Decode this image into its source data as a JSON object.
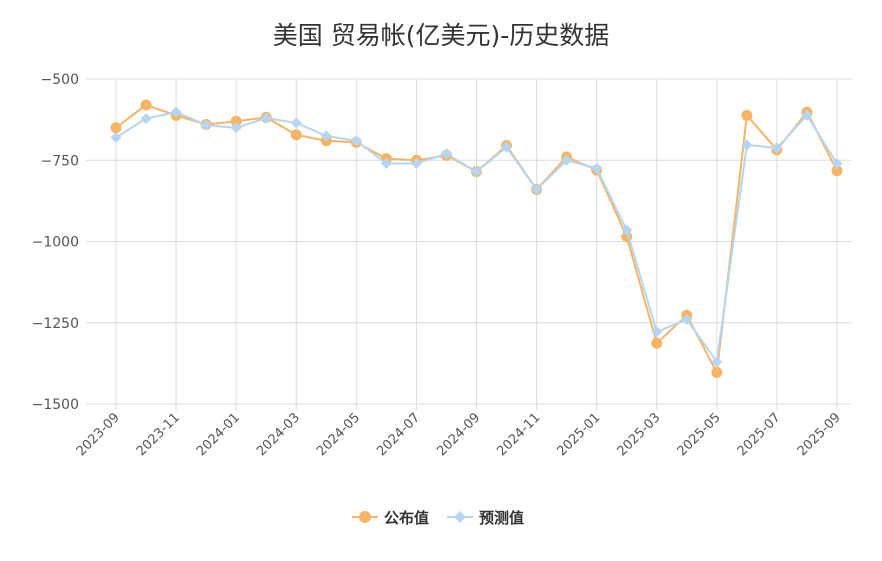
{
  "chart_data": {
    "type": "line",
    "title": "美国 贸易帐(亿美元)-历史数据",
    "x": [
      "2023-09",
      "2023-10",
      "2023-11",
      "2023-12",
      "2024-01",
      "2024-02",
      "2024-03",
      "2024-04",
      "2024-05",
      "2024-06",
      "2024-07",
      "2024-08",
      "2024-09",
      "2024-10",
      "2024-11",
      "2024-12",
      "2025-01",
      "2025-02",
      "2025-03",
      "2025-04",
      "2025-05",
      "2025-06",
      "2025-07",
      "2025-08",
      "2025-09"
    ],
    "x_tick_labels": [
      "2023-09",
      "2023-11",
      "2024-01",
      "2024-03",
      "2024-05",
      "2024-07",
      "2024-09",
      "2024-11",
      "2025-01",
      "2025-03",
      "2025-05",
      "2025-07",
      "2025-09"
    ],
    "y_ticks": [
      -500,
      -750,
      -1000,
      -1250,
      -1500
    ],
    "y_tick_labels": [
      "−500",
      "−750",
      "−1000",
      "−1250",
      "−1500"
    ],
    "ylim": [
      -1500,
      -500
    ],
    "grid": true,
    "legend_position": "bottom-center",
    "series": [
      {
        "name": "公布值",
        "color": "#f6b466",
        "marker": "circle",
        "values": [
          -650,
          -580,
          -612,
          -640,
          -630,
          -618,
          -672,
          -690,
          -695,
          -745,
          -750,
          -735,
          -785,
          -705,
          -840,
          -740,
          -780,
          -985,
          -1313,
          -1227,
          -1403,
          -612,
          -718,
          -602,
          -782
        ]
      },
      {
        "name": "预测值",
        "color": "#b5d6f3",
        "marker": "diamond",
        "values": [
          -680,
          -622,
          -602,
          -642,
          -650,
          -620,
          -635,
          -675,
          -690,
          -760,
          -760,
          -730,
          -785,
          -710,
          -840,
          -750,
          -775,
          -965,
          -1278,
          -1240,
          -1370,
          -703,
          -712,
          -612,
          -760
        ]
      }
    ]
  }
}
